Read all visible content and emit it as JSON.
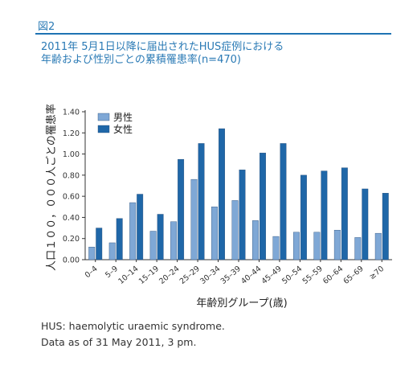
{
  "figure_label": "図2",
  "title_lines": [
    "2011年 5月1日以降に届出されたHUS症例における",
    "年齢および性別ごとの累積罹患率(n=470)"
  ],
  "notes": [
    "HUS: haemolytic uraemic syndrome.",
    "Data as of 31 May 2011, 3 pm."
  ],
  "colors": {
    "accent": "#1f73b3",
    "male": "#7fa8d6",
    "female": "#1f67a8",
    "axis": "#333333"
  },
  "chart_data": {
    "type": "bar",
    "xlabel": "年齢別グループ(歳)",
    "ylabel": "人口１００，０００人ごとの罹患率",
    "ylim": [
      0,
      1.4
    ],
    "yticks": [
      "0.00",
      "0.20",
      "0.40",
      "0.60",
      "0.80",
      "1.00",
      "1.20",
      "1.40"
    ],
    "legend_position": "top-left",
    "categories": [
      "0–4",
      "5–9",
      "10–14",
      "15–19",
      "20–24",
      "25–29",
      "30–34",
      "35–39",
      "40–44",
      "45–49",
      "50–54",
      "55–59",
      "60–64",
      "65–69",
      "≥70"
    ],
    "series": [
      {
        "name": "男性",
        "values": [
          0.12,
          0.16,
          0.54,
          0.27,
          0.36,
          0.76,
          0.5,
          0.56,
          0.37,
          0.22,
          0.26,
          0.26,
          0.28,
          0.21,
          0.25
        ]
      },
      {
        "name": "女性",
        "values": [
          0.3,
          0.39,
          0.62,
          0.43,
          0.95,
          1.1,
          1.24,
          0.85,
          1.01,
          1.1,
          0.8,
          0.84,
          0.87,
          0.67,
          0.63
        ]
      }
    ]
  }
}
